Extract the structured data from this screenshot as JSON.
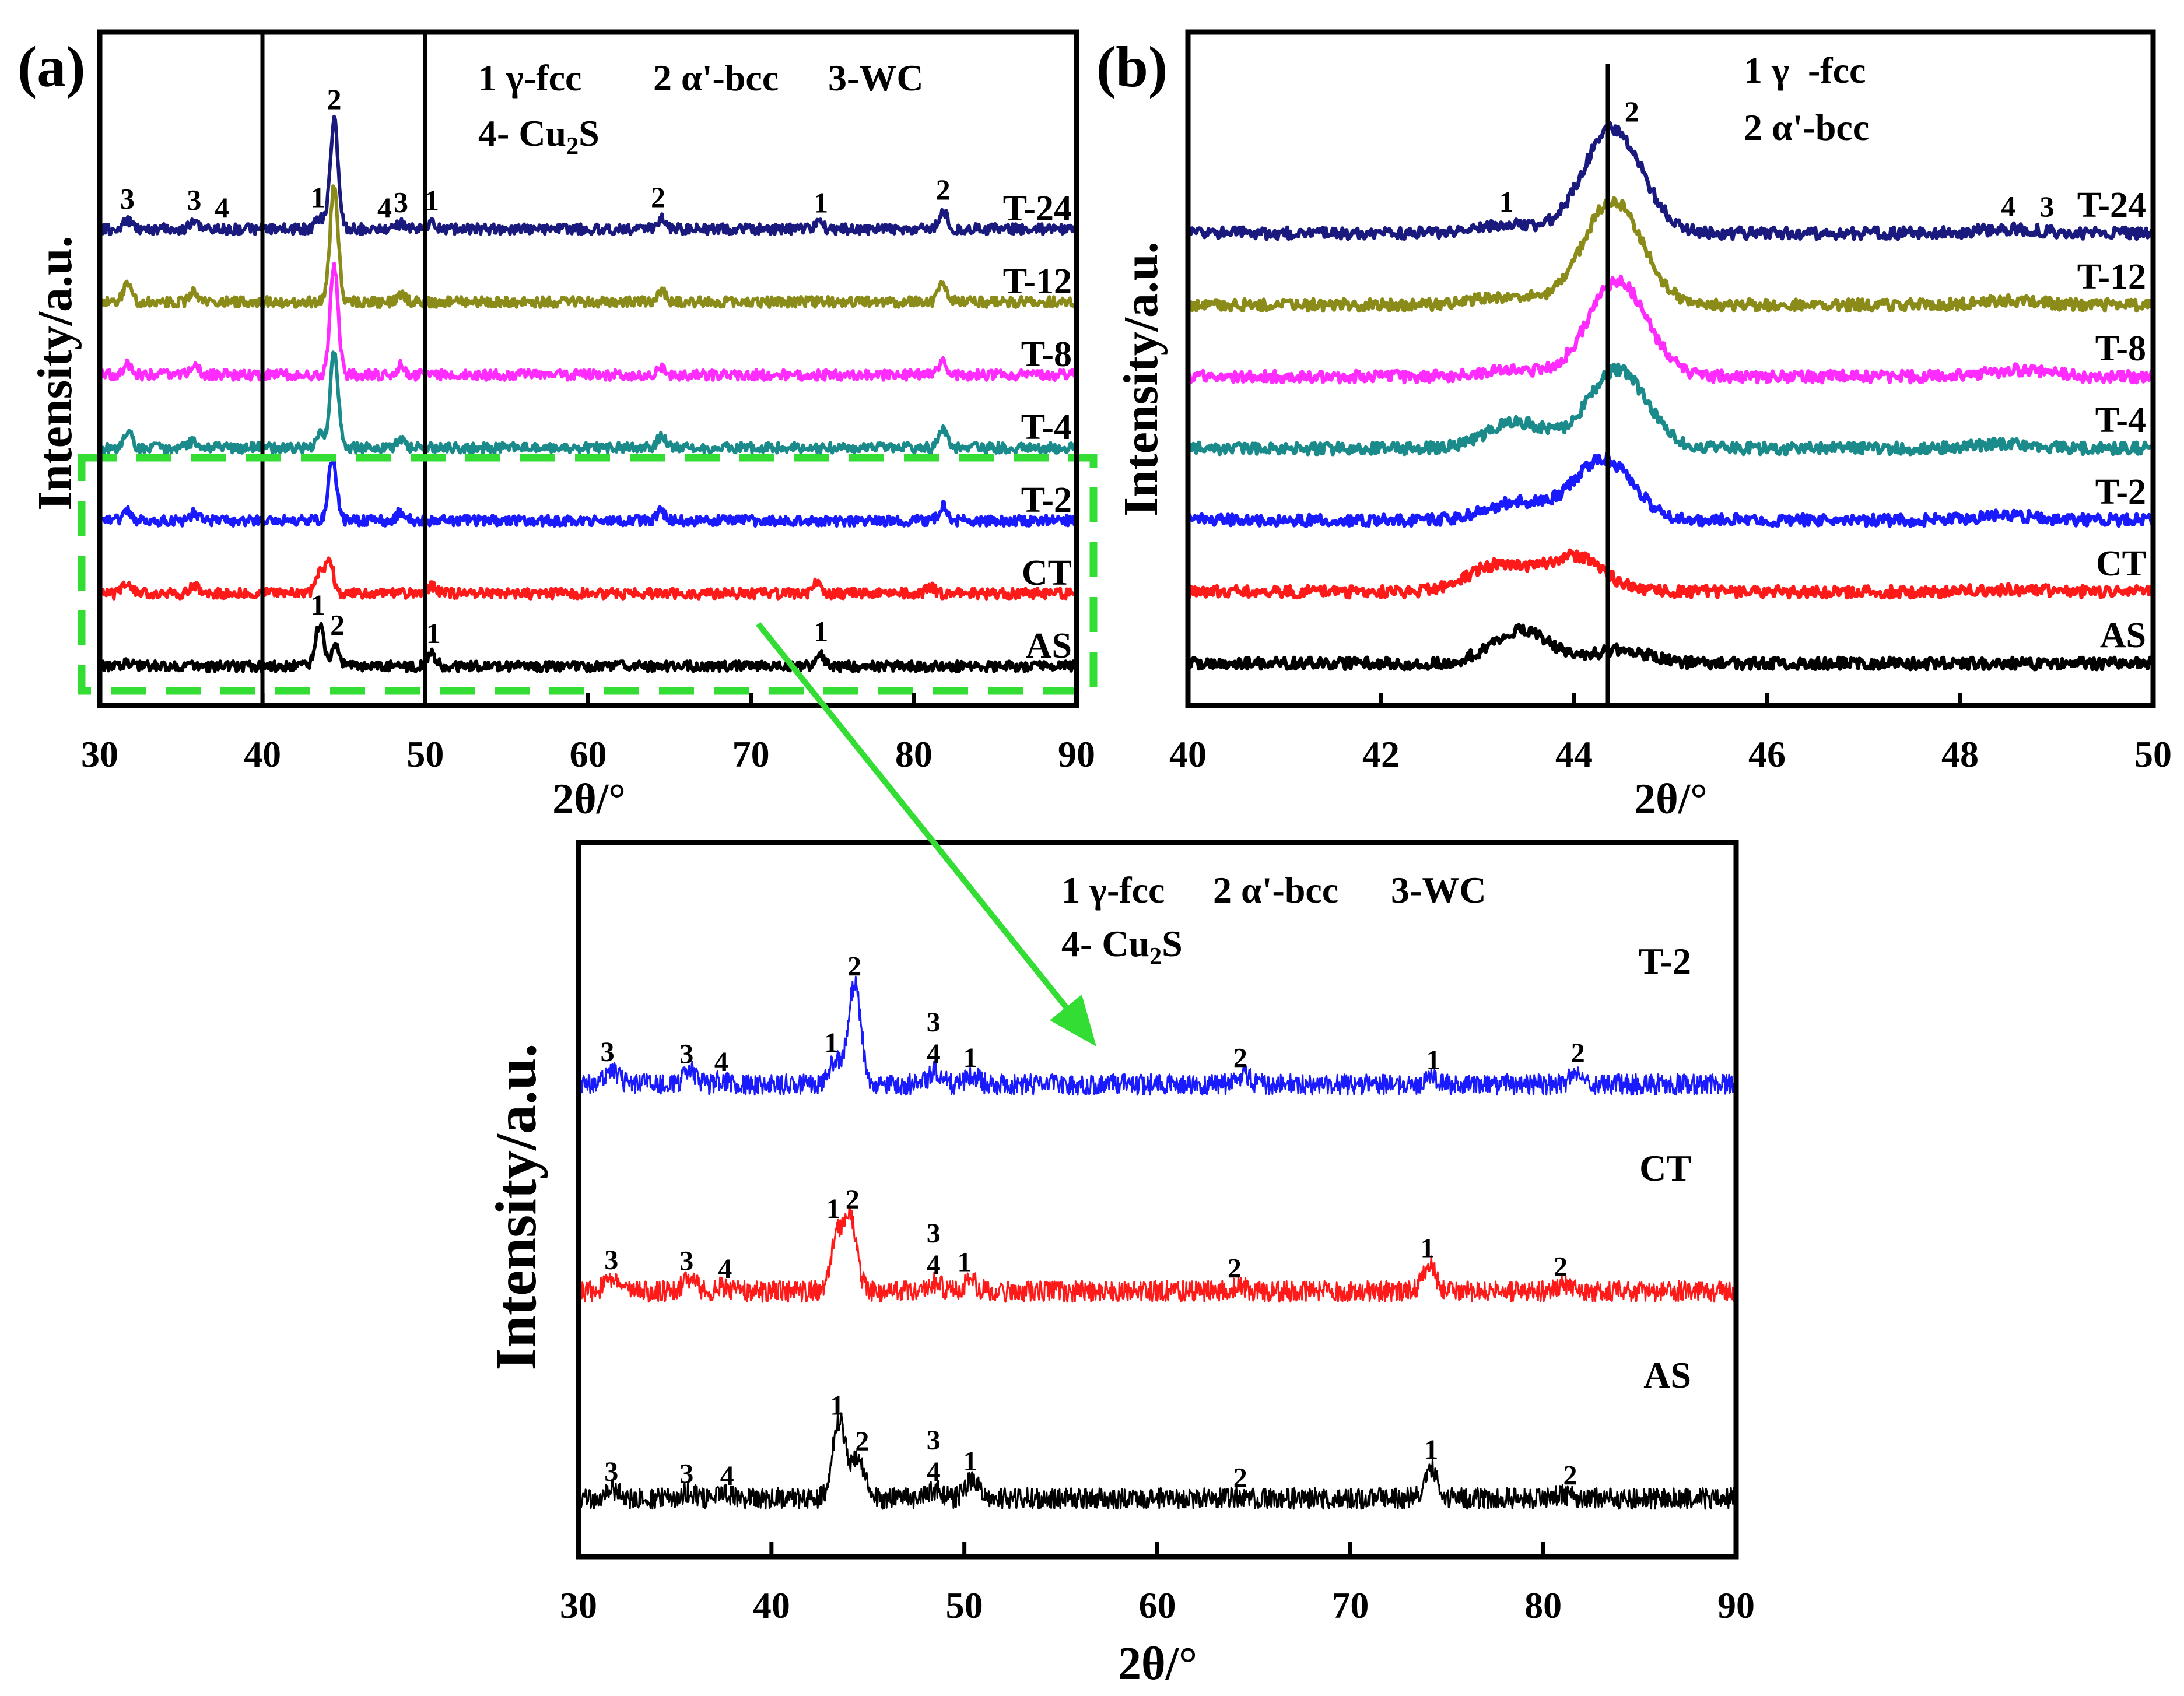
{
  "chart_data": [
    {
      "type": "line",
      "panel_label": "(a)",
      "xlabel": "2θ/°",
      "ylabel": "Intensity/a.u.",
      "xlim": [
        30,
        90
      ],
      "xticks": [
        "30",
        "40",
        "50",
        "60",
        "70",
        "80",
        "90"
      ],
      "legend": [
        "1 γ-fcc",
        "2 α'-bcc",
        "3-WC",
        "4- Cu",
        "2",
        "S"
      ],
      "vertical_lines_x": [
        40,
        50
      ],
      "highlight_box": "dashed green rectangle around T-2, CT and AS traces",
      "series": [
        {
          "name": "T-24",
          "color": "#1a1a7e",
          "offset": 6,
          "peaks": [
            [
              31.7,
              0.25
            ],
            [
              35.8,
              0.22
            ],
            [
              43.5,
              0.3
            ],
            [
              44.4,
              3.0
            ],
            [
              48.5,
              0.15
            ],
            [
              50.4,
              0.2
            ],
            [
              64.5,
              0.3
            ],
            [
              74.2,
              0.15
            ],
            [
              81.8,
              0.5
            ]
          ],
          "peak_labels": [
            [
              31.7,
              "3"
            ],
            [
              35.8,
              "3"
            ],
            [
              37.5,
              "4"
            ],
            [
              43.4,
              "1"
            ],
            [
              44.4,
              "2"
            ],
            [
              47.5,
              "4"
            ],
            [
              48.5,
              "3"
            ],
            [
              50.4,
              "1"
            ],
            [
              64.3,
              "2"
            ],
            [
              74.3,
              "1"
            ],
            [
              81.8,
              "2"
            ]
          ]
        },
        {
          "name": "T-12",
          "color": "#8b8b1a",
          "offset": 5,
          "peaks": [
            [
              31.7,
              0.5
            ],
            [
              35.8,
              0.3
            ],
            [
              44.4,
              3.2
            ],
            [
              48.5,
              0.2
            ],
            [
              64.5,
              0.3
            ],
            [
              81.8,
              0.5
            ]
          ]
        },
        {
          "name": "T-8",
          "color": "#ff2bff",
          "offset": 4,
          "peaks": [
            [
              31.7,
              0.3
            ],
            [
              35.8,
              0.3
            ],
            [
              44.4,
              3.0
            ],
            [
              48.5,
              0.25
            ],
            [
              64.5,
              0.25
            ],
            [
              81.8,
              0.4
            ]
          ]
        },
        {
          "name": "T-4",
          "color": "#1a8a8a",
          "offset": 3,
          "peaks": [
            [
              31.7,
              0.5
            ],
            [
              35.8,
              0.2
            ],
            [
              43.5,
              0.4
            ],
            [
              44.4,
              2.6
            ],
            [
              48.5,
              0.2
            ],
            [
              64.5,
              0.3
            ],
            [
              81.8,
              0.5
            ]
          ]
        },
        {
          "name": "T-2",
          "color": "#1a1aff",
          "offset": 2,
          "peaks": [
            [
              31.7,
              0.3
            ],
            [
              35.8,
              0.2
            ],
            [
              44.3,
              1.7
            ],
            [
              48.5,
              0.25
            ],
            [
              64.5,
              0.25
            ],
            [
              81.8,
              0.4
            ]
          ]
        },
        {
          "name": "CT",
          "color": "#ff1a1a",
          "offset": 1,
          "peaks": [
            [
              31.7,
              0.3
            ],
            [
              35.8,
              0.2
            ],
            [
              43.5,
              0.6
            ],
            [
              44.1,
              0.9
            ],
            [
              50.4,
              0.2
            ],
            [
              74.1,
              0.35
            ],
            [
              81.0,
              0.2
            ]
          ]
        },
        {
          "name": "AS",
          "color": "#000000",
          "offset": 0,
          "peaks": [
            [
              31.7,
              0.1
            ],
            [
              43.5,
              1.2
            ],
            [
              44.5,
              0.6
            ],
            [
              50.4,
              0.35
            ],
            [
              74.2,
              0.4
            ]
          ],
          "peak_labels": [
            [
              43.4,
              "1"
            ],
            [
              44.6,
              "2"
            ],
            [
              50.5,
              "1"
            ],
            [
              74.3,
              "1"
            ]
          ]
        }
      ]
    },
    {
      "type": "line",
      "panel_label": "(b)",
      "xlabel": "2θ/°",
      "ylabel": "Intensity/a.u.",
      "xlim": [
        40,
        50
      ],
      "xticks": [
        "40",
        "42",
        "44",
        "46",
        "48",
        "50"
      ],
      "legend": [
        "1 γ  -fcc",
        "2 α'-bcc"
      ],
      "vertical_lines_x": [
        44.35
      ],
      "series": [
        {
          "name": "T-24",
          "color": "#1a1a7e",
          "offset": 6,
          "peaks": [
            [
              43.3,
              0.2
            ],
            [
              44.4,
              2.4
            ],
            [
              48.5,
              0.1
            ]
          ],
          "peak_labels": [
            [
              43.3,
              "1"
            ],
            [
              44.6,
              "2"
            ],
            [
              48.5,
              "4"
            ],
            [
              48.9,
              "3"
            ]
          ]
        },
        {
          "name": "T-12",
          "color": "#8b8b1a",
          "offset": 5,
          "peaks": [
            [
              43.3,
              0.2
            ],
            [
              44.4,
              2.4
            ],
            [
              48.5,
              0.1
            ]
          ]
        },
        {
          "name": "T-8",
          "color": "#ff2bff",
          "offset": 4,
          "peaks": [
            [
              43.3,
              0.15
            ],
            [
              44.45,
              2.2
            ],
            [
              48.6,
              0.15
            ]
          ]
        },
        {
          "name": "T-4",
          "color": "#1a8a8a",
          "offset": 3,
          "peaks": [
            [
              43.4,
              0.6
            ],
            [
              44.45,
              1.8
            ],
            [
              48.5,
              0.1
            ]
          ]
        },
        {
          "name": "T-2",
          "color": "#1a1aff",
          "offset": 2,
          "peaks": [
            [
              43.4,
              0.4
            ],
            [
              44.3,
              1.4
            ],
            [
              48.5,
              0.1
            ]
          ]
        },
        {
          "name": "CT",
          "color": "#ff1a1a",
          "offset": 1,
          "peaks": [
            [
              43.2,
              0.6
            ],
            [
              44.0,
              0.8
            ],
            [
              48.5,
              0.05
            ]
          ]
        },
        {
          "name": "AS",
          "color": "#000000",
          "offset": 0,
          "peaks": [
            [
              43.45,
              0.75
            ],
            [
              44.5,
              0.3
            ]
          ]
        }
      ]
    },
    {
      "type": "line",
      "panel_label": "inset",
      "xlabel": "2θ/°",
      "ylabel": "Intensity/a.u.",
      "xlim": [
        30,
        90
      ],
      "xticks": [
        "30",
        "40",
        "50",
        "60",
        "70",
        "80",
        "90"
      ],
      "legend": [
        "1 γ-fcc",
        "2 α'-bcc",
        "3-WC",
        "4- Cu",
        "2",
        "S"
      ],
      "series": [
        {
          "name": "T-2",
          "color": "#1a1aff",
          "offset": 2,
          "peaks": [
            [
              31.7,
              0.35
            ],
            [
              35.8,
              0.3
            ],
            [
              37.5,
              0.1
            ],
            [
              43.3,
              0.5
            ],
            [
              44.3,
              2.3
            ],
            [
              48.5,
              0.3
            ],
            [
              50.4,
              0.2
            ],
            [
              64.5,
              0.2
            ],
            [
              74.2,
              0.15
            ],
            [
              81.8,
              0.3
            ]
          ],
          "peak_labels": [
            [
              31.5,
              "3"
            ],
            [
              35.6,
              "3"
            ],
            [
              37.4,
              "4"
            ],
            [
              43.1,
              "1"
            ],
            [
              44.3,
              "2"
            ],
            [
              48.4,
              "4"
            ],
            [
              48.4,
              "3"
            ],
            [
              50.3,
              "1"
            ],
            [
              64.3,
              "2"
            ],
            [
              74.3,
              "1"
            ],
            [
              81.8,
              "2"
            ]
          ]
        },
        {
          "name": "CT",
          "color": "#ff1a1a",
          "offset": 1,
          "peaks": [
            [
              31.7,
              0.3
            ],
            [
              35.8,
              0.3
            ],
            [
              37.5,
              0.1
            ],
            [
              43.4,
              1.2
            ],
            [
              44.1,
              1.6
            ],
            [
              48.5,
              0.2
            ],
            [
              50.3,
              0.25
            ],
            [
              64.3,
              0.1
            ],
            [
              74.1,
              0.6
            ],
            [
              81.0,
              0.15
            ]
          ],
          "peak_labels": [
            [
              31.7,
              "3"
            ],
            [
              35.6,
              "3"
            ],
            [
              37.6,
              "4"
            ],
            [
              43.2,
              "1"
            ],
            [
              44.2,
              "2"
            ],
            [
              48.4,
              "4"
            ],
            [
              48.4,
              "3"
            ],
            [
              50.0,
              "1"
            ],
            [
              64.0,
              "2"
            ],
            [
              74.0,
              "1"
            ],
            [
              80.9,
              "2"
            ]
          ]
        },
        {
          "name": "AS",
          "color": "#000000",
          "offset": 0,
          "peaks": [
            [
              31.8,
              0.2
            ],
            [
              35.7,
              0.15
            ],
            [
              37.5,
              0.1
            ],
            [
              43.5,
              1.8
            ],
            [
              44.5,
              0.9
            ],
            [
              48.5,
              0.2
            ],
            [
              50.4,
              0.45
            ],
            [
              64.3,
              0.05
            ],
            [
              74.2,
              0.7
            ],
            [
              81.0,
              0.1
            ]
          ],
          "peak_labels": [
            [
              31.7,
              "3"
            ],
            [
              35.6,
              "3"
            ],
            [
              37.7,
              "4"
            ],
            [
              43.4,
              "1"
            ],
            [
              44.7,
              "2"
            ],
            [
              48.4,
              "4"
            ],
            [
              48.4,
              "3"
            ],
            [
              50.3,
              "1"
            ],
            [
              64.3,
              "2"
            ],
            [
              74.2,
              "1"
            ],
            [
              81.4,
              "2"
            ]
          ]
        }
      ]
    }
  ]
}
